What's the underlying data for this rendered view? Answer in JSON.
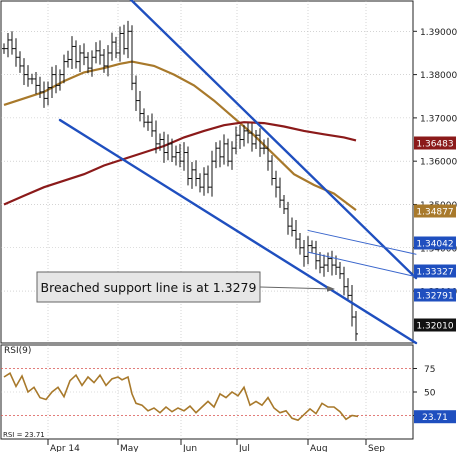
{
  "chart_data": {
    "type": "candlestick",
    "x_axis": {
      "labels": [
        "Apr 14",
        "May",
        "Jun",
        "Jul",
        "Aug",
        "Sep"
      ]
    },
    "price_axis": {
      "range": [
        1.318,
        1.397
      ],
      "ticks": [
        1.39,
        1.38,
        1.37,
        1.36,
        1.35,
        1.34,
        1.33
      ]
    },
    "price_tags": [
      {
        "value": "1.36483",
        "color": "#8b1a1a",
        "text_color": "#ffffff"
      },
      {
        "value": "1.34877",
        "color": "#a8792b",
        "text_color": "#ffffff"
      },
      {
        "value": "1.34042",
        "color": "#1f4fbf",
        "text_color": "#ffffff"
      },
      {
        "value": "1.33327",
        "color": "#1f4fbf",
        "text_color": "#ffffff"
      },
      {
        "value": "1.32791",
        "color": "#1f4fbf",
        "text_color": "#ffffff"
      },
      {
        "value": "1.32010",
        "color": "#111111",
        "text_color": "#ffffff"
      }
    ],
    "annotation": {
      "text": "Breached support line is at 1.3279",
      "target_value": 1.3279
    },
    "price_series": [
      {
        "x": 0,
        "close": 1.386
      },
      {
        "x": 4,
        "close": 1.388
      },
      {
        "x": 8,
        "close": 1.386
      },
      {
        "x": 12,
        "close": 1.384
      },
      {
        "x": 16,
        "close": 1.382
      },
      {
        "x": 20,
        "close": 1.38
      },
      {
        "x": 24,
        "close": 1.379
      },
      {
        "x": 28,
        "close": 1.379
      },
      {
        "x": 32,
        "close": 1.3775
      },
      {
        "x": 36,
        "close": 1.376
      },
      {
        "x": 40,
        "close": 1.3745
      },
      {
        "x": 44,
        "close": 1.377
      },
      {
        "x": 48,
        "close": 1.38
      },
      {
        "x": 52,
        "close": 1.3775
      },
      {
        "x": 56,
        "close": 1.38
      },
      {
        "x": 60,
        "close": 1.383
      },
      {
        "x": 64,
        "close": 1.3835
      },
      {
        "x": 68,
        "close": 1.3865
      },
      {
        "x": 72,
        "close": 1.383
      },
      {
        "x": 76,
        "close": 1.385
      },
      {
        "x": 80,
        "close": 1.384
      },
      {
        "x": 84,
        "close": 1.3815
      },
      {
        "x": 88,
        "close": 1.384
      },
      {
        "x": 92,
        "close": 1.3855
      },
      {
        "x": 96,
        "close": 1.3845
      },
      {
        "x": 100,
        "close": 1.382
      },
      {
        "x": 104,
        "close": 1.385
      },
      {
        "x": 108,
        "close": 1.3875
      },
      {
        "x": 112,
        "close": 1.385
      },
      {
        "x": 116,
        "close": 1.3895
      },
      {
        "x": 120,
        "close": 1.386
      },
      {
        "x": 124,
        "close": 1.39
      },
      {
        "x": 128,
        "close": 1.378
      },
      {
        "x": 132,
        "close": 1.374
      },
      {
        "x": 136,
        "close": 1.371
      },
      {
        "x": 140,
        "close": 1.369
      },
      {
        "x": 144,
        "close": 1.369
      },
      {
        "x": 148,
        "close": 1.367
      },
      {
        "x": 152,
        "close": 1.364
      },
      {
        "x": 156,
        "close": 1.365
      },
      {
        "x": 160,
        "close": 1.362
      },
      {
        "x": 164,
        "close": 1.364
      },
      {
        "x": 168,
        "close": 1.361
      },
      {
        "x": 172,
        "close": 1.362
      },
      {
        "x": 176,
        "close": 1.36
      },
      {
        "x": 180,
        "close": 1.362
      },
      {
        "x": 184,
        "close": 1.356
      },
      {
        "x": 188,
        "close": 1.358
      },
      {
        "x": 192,
        "close": 1.356
      },
      {
        "x": 196,
        "close": 1.354
      },
      {
        "x": 200,
        "close": 1.357
      },
      {
        "x": 204,
        "close": 1.354
      },
      {
        "x": 208,
        "close": 1.36
      },
      {
        "x": 212,
        "close": 1.363
      },
      {
        "x": 216,
        "close": 1.361
      },
      {
        "x": 220,
        "close": 1.364
      },
      {
        "x": 224,
        "close": 1.36
      },
      {
        "x": 228,
        "close": 1.363
      },
      {
        "x": 232,
        "close": 1.366
      },
      {
        "x": 236,
        "close": 1.365
      },
      {
        "x": 240,
        "close": 1.367
      },
      {
        "x": 244,
        "close": 1.3665
      },
      {
        "x": 248,
        "close": 1.364
      },
      {
        "x": 252,
        "close": 1.366
      },
      {
        "x": 256,
        "close": 1.363
      },
      {
        "x": 260,
        "close": 1.363
      },
      {
        "x": 264,
        "close": 1.36
      },
      {
        "x": 268,
        "close": 1.356
      },
      {
        "x": 272,
        "close": 1.354
      },
      {
        "x": 276,
        "close": 1.351
      },
      {
        "x": 280,
        "close": 1.349
      },
      {
        "x": 284,
        "close": 1.345
      },
      {
        "x": 288,
        "close": 1.344
      },
      {
        "x": 292,
        "close": 1.342
      },
      {
        "x": 296,
        "close": 1.34
      },
      {
        "x": 300,
        "close": 1.338
      },
      {
        "x": 304,
        "close": 1.3405
      },
      {
        "x": 308,
        "close": 1.34
      },
      {
        "x": 312,
        "close": 1.337
      },
      {
        "x": 316,
        "close": 1.3355
      },
      {
        "x": 320,
        "close": 1.336
      },
      {
        "x": 324,
        "close": 1.3375
      },
      {
        "x": 328,
        "close": 1.336
      },
      {
        "x": 332,
        "close": 1.3355
      },
      {
        "x": 336,
        "close": 1.334
      },
      {
        "x": 340,
        "close": 1.331
      },
      {
        "x": 344,
        "close": 1.329
      },
      {
        "x": 348,
        "close": 1.324
      },
      {
        "x": 352,
        "close": 1.3201
      }
    ],
    "moving_averages": [
      {
        "color": "#a8792b",
        "points": [
          [
            0,
            1.373
          ],
          [
            20,
            1.3745
          ],
          [
            40,
            1.376
          ],
          [
            60,
            1.3785
          ],
          [
            80,
            1.3805
          ],
          [
            100,
            1.3815
          ],
          [
            116,
            1.3825
          ],
          [
            128,
            1.383
          ],
          [
            150,
            1.382
          ],
          [
            170,
            1.38
          ],
          [
            190,
            1.3775
          ],
          [
            210,
            1.374
          ],
          [
            230,
            1.37
          ],
          [
            250,
            1.366
          ],
          [
            270,
            1.3615
          ],
          [
            290,
            1.357
          ],
          [
            310,
            1.3545
          ],
          [
            330,
            1.3525
          ],
          [
            352,
            1.3487
          ]
        ]
      },
      {
        "color": "#8b1a1a",
        "points": [
          [
            0,
            1.35
          ],
          [
            20,
            1.352
          ],
          [
            40,
            1.354
          ],
          [
            60,
            1.3555
          ],
          [
            80,
            1.357
          ],
          [
            100,
            1.359
          ],
          [
            120,
            1.3605
          ],
          [
            140,
            1.362
          ],
          [
            160,
            1.3635
          ],
          [
            180,
            1.3655
          ],
          [
            200,
            1.367
          ],
          [
            220,
            1.3683
          ],
          [
            240,
            1.369
          ],
          [
            260,
            1.3688
          ],
          [
            280,
            1.368
          ],
          [
            300,
            1.367
          ],
          [
            320,
            1.3662
          ],
          [
            340,
            1.3655
          ],
          [
            352,
            1.3648
          ]
        ]
      }
    ],
    "trendlines": [
      {
        "color": "#1f4fbf",
        "from": [
          126,
          1.3975
        ],
        "to": [
          412,
          1.333
        ],
        "width": 2.4
      },
      {
        "color": "#1f4fbf",
        "from": [
          56,
          1.3695
        ],
        "to": [
          412,
          1.318
        ],
        "width": 2.4
      },
      {
        "color": "#3a66cc",
        "from": [
          304,
          1.344
        ],
        "to": [
          412,
          1.3385
        ],
        "width": 1
      },
      {
        "color": "#3a66cc",
        "from": [
          304,
          1.339
        ],
        "to": [
          412,
          1.3333
        ],
        "width": 1
      }
    ],
    "rsi": {
      "label": "RSI(9)",
      "legend": "RSI = 23.71",
      "range": [
        0,
        100
      ],
      "ticks": [
        75,
        50,
        25
      ],
      "overbought": 75,
      "oversold": 25,
      "last_value": "23.71",
      "values": [
        [
          0,
          66
        ],
        [
          6,
          70
        ],
        [
          12,
          56
        ],
        [
          18,
          67
        ],
        [
          24,
          50
        ],
        [
          30,
          55
        ],
        [
          36,
          44
        ],
        [
          42,
          42
        ],
        [
          48,
          50
        ],
        [
          54,
          55
        ],
        [
          60,
          45
        ],
        [
          66,
          62
        ],
        [
          72,
          68
        ],
        [
          78,
          57
        ],
        [
          84,
          66
        ],
        [
          90,
          60
        ],
        [
          96,
          68
        ],
        [
          102,
          57
        ],
        [
          108,
          64
        ],
        [
          114,
          66
        ],
        [
          118,
          63
        ],
        [
          124,
          66
        ],
        [
          128,
          48
        ],
        [
          132,
          38
        ],
        [
          138,
          36
        ],
        [
          144,
          30
        ],
        [
          150,
          33
        ],
        [
          156,
          28
        ],
        [
          162,
          34
        ],
        [
          168,
          29
        ],
        [
          174,
          33
        ],
        [
          180,
          30
        ],
        [
          186,
          35
        ],
        [
          192,
          28
        ],
        [
          198,
          34
        ],
        [
          204,
          40
        ],
        [
          210,
          34
        ],
        [
          216,
          48
        ],
        [
          222,
          44
        ],
        [
          228,
          50
        ],
        [
          234,
          46
        ],
        [
          240,
          55
        ],
        [
          246,
          36
        ],
        [
          252,
          40
        ],
        [
          258,
          36
        ],
        [
          264,
          44
        ],
        [
          270,
          33
        ],
        [
          276,
          28
        ],
        [
          282,
          30
        ],
        [
          288,
          22
        ],
        [
          294,
          20
        ],
        [
          300,
          26
        ],
        [
          306,
          32
        ],
        [
          312,
          27
        ],
        [
          318,
          38
        ],
        [
          324,
          34
        ],
        [
          330,
          34
        ],
        [
          336,
          29
        ],
        [
          342,
          21
        ],
        [
          348,
          25
        ],
        [
          354,
          24
        ]
      ]
    }
  }
}
